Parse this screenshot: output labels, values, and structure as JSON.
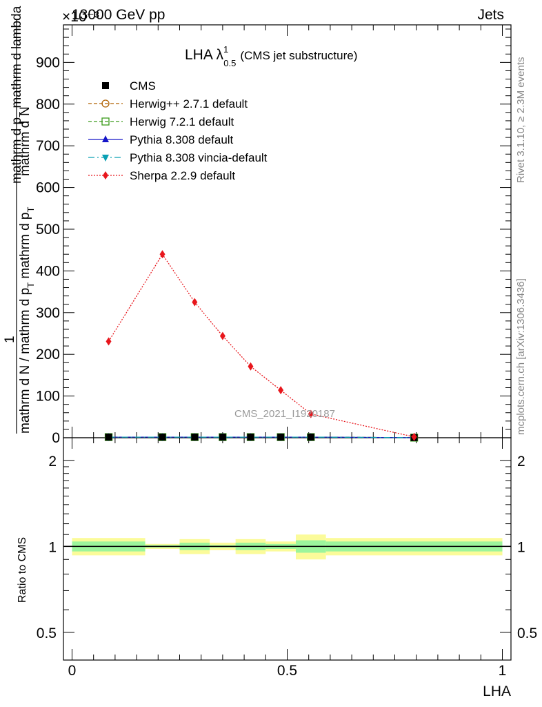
{
  "header": {
    "left": "13000 GeV pp",
    "right": "Jets",
    "exponent": "×10⁻³"
  },
  "side": {
    "rivet": "Rivet 3.1.10, ≥ 2.3M events",
    "mcplots": "mcplots.cern.ch [arXiv:1306.3436]"
  },
  "chart_data": {
    "type": "line",
    "title": "LHA λ",
    "title_sup": "1",
    "title_sub": "0.5",
    "title_note": "(CMS jet substructure)",
    "watermark": "CMS_2021_I1920187",
    "xlabel": "LHA",
    "ylabel_numerator_1": "mathrm d",
    "ylabel_numerator_2": "N",
    "ylabel_numerator_3": "mathrm d p",
    "ylabel_numerator_sub": "T",
    "ylabel_numerator_4": " mathrm d lambda",
    "ylabel_one": "1",
    "ylabel_denominator_1": "mathrm d N / mathrm d p",
    "ylabel_denominator_sub": "T",
    "ylabel_denominator_2": " mathrm d p",
    "ylabel_denominator_sub2": "T",
    "xlim": [
      -0.02,
      1.02
    ],
    "ylim": [
      0,
      990
    ],
    "xticks": [
      {
        "v": 0,
        "label": "0"
      },
      {
        "v": 0.5,
        "label": "0.5"
      },
      {
        "v": 1,
        "label": "1"
      }
    ],
    "yticks": [
      {
        "v": 0,
        "label": "0"
      },
      {
        "v": 100,
        "label": "100"
      },
      {
        "v": 200,
        "label": "200"
      },
      {
        "v": 300,
        "label": "300"
      },
      {
        "v": 400,
        "label": "400"
      },
      {
        "v": 500,
        "label": "500"
      },
      {
        "v": 600,
        "label": "600"
      },
      {
        "v": 700,
        "label": "700"
      },
      {
        "v": 800,
        "label": "800"
      },
      {
        "v": 900,
        "label": "900"
      }
    ],
    "series": [
      {
        "name": "CMS",
        "kind": "data",
        "color": "#000000",
        "marker": "square",
        "x": [
          0.085,
          0.21,
          0.285,
          0.35,
          0.415,
          0.485,
          0.555,
          0.795
        ],
        "y": [
          1.5,
          1.5,
          1.5,
          1.5,
          1.5,
          1.5,
          1.5,
          0.2
        ]
      },
      {
        "name": "Herwig++ 2.7.1 default",
        "kind": "mc",
        "color": "#b06000",
        "marker": "circle-open",
        "dash": "5,3",
        "x": [
          0.085,
          0.21,
          0.285,
          0.35,
          0.415,
          0.485,
          0.555,
          0.795
        ],
        "y": [
          1.5,
          1.5,
          1.5,
          1.5,
          1.5,
          1.5,
          1.5,
          0.2
        ]
      },
      {
        "name": "Herwig 7.2.1 default",
        "kind": "mc",
        "color": "#3a9a1a",
        "marker": "square-open",
        "dash": "5,3",
        "x": [
          0.085,
          0.21,
          0.285,
          0.35,
          0.415,
          0.485,
          0.555,
          0.795
        ],
        "y": [
          1.5,
          1.5,
          1.5,
          1.5,
          1.5,
          1.5,
          1.5,
          0.2
        ]
      },
      {
        "name": "Pythia 8.308 default",
        "kind": "mc",
        "color": "#1515c8",
        "marker": "triangle-up",
        "dash": "",
        "x": [
          0.085,
          0.21,
          0.285,
          0.35,
          0.415,
          0.485,
          0.555,
          0.795
        ],
        "y": [
          1.5,
          1.5,
          1.5,
          1.5,
          1.5,
          1.5,
          1.5,
          0.2
        ]
      },
      {
        "name": "Pythia 8.308 vincia-default",
        "kind": "mc",
        "color": "#0aa0b4",
        "marker": "triangle-down",
        "dash": "9,4,2,4",
        "x": [
          0.085,
          0.21,
          0.285,
          0.35,
          0.415,
          0.485,
          0.555,
          0.795
        ],
        "y": [
          1.5,
          1.5,
          1.5,
          1.5,
          1.5,
          1.5,
          1.5,
          0.2
        ]
      },
      {
        "name": "Sherpa 2.2.9 default",
        "kind": "mc",
        "color": "#e8161c",
        "marker": "diamond",
        "dash": "2,2",
        "x": [
          0.085,
          0.21,
          0.285,
          0.35,
          0.415,
          0.485,
          0.555,
          0.795
        ],
        "y": [
          231,
          440,
          325,
          244,
          171,
          114,
          57,
          2
        ]
      }
    ],
    "ratio": {
      "ylabel": "Ratio to CMS",
      "ylim": [
        0.4,
        2.4
      ],
      "scale": "log",
      "yticks": [
        {
          "v": 0.5,
          "label": "0.5"
        },
        {
          "v": 1,
          "label": "1"
        },
        {
          "v": 2,
          "label": "2"
        }
      ],
      "bands": [
        {
          "x0": 0.0,
          "x1": 0.17,
          "inner": 0.04,
          "outer": 0.07
        },
        {
          "x0": 0.17,
          "x1": 0.25,
          "inner": 0.01,
          "outer": 0.02
        },
        {
          "x0": 0.25,
          "x1": 0.32,
          "inner": 0.03,
          "outer": 0.06
        },
        {
          "x0": 0.32,
          "x1": 0.38,
          "inner": 0.01,
          "outer": 0.03
        },
        {
          "x0": 0.38,
          "x1": 0.45,
          "inner": 0.03,
          "outer": 0.06
        },
        {
          "x0": 0.45,
          "x1": 0.52,
          "inner": 0.02,
          "outer": 0.04
        },
        {
          "x0": 0.52,
          "x1": 0.59,
          "inner": 0.05,
          "outer": 0.1
        },
        {
          "x0": 0.59,
          "x1": 1.0,
          "inner": 0.04,
          "outer": 0.07
        }
      ]
    }
  }
}
